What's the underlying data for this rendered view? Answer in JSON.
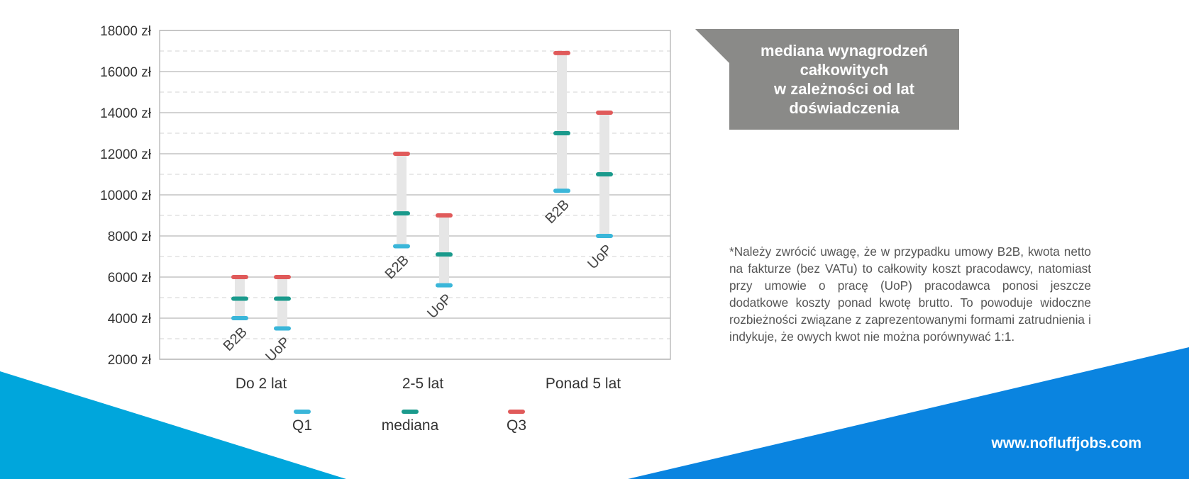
{
  "colors": {
    "q1": "#3ab6d9",
    "median": "#1a9a8c",
    "q3": "#e05a5a",
    "range_bar": "#e6e6e6",
    "title_bg": "#8a8a88",
    "band_left": "#00a6dc",
    "band_right": "#0a84e0"
  },
  "title": "mediana wynagrodzeń\ncałkowitych\nw zależności od lat\ndoświadczenia",
  "footnote": "*Należy zwrócić uwagę, że w przypadku umowy B2B, kwota netto na fakturze (bez VATu) to całkowity koszt pracodawcy, natomiast przy umowie o pracę (UoP) pracodawca ponosi jeszcze dodatkowe koszty ponad kwotę brutto. To powo­duje widoczne rozbieżności związane z zaprezentowanymi formami zatrudnienia i indykuje, że owych kwot nie można porównywać 1:1.",
  "website": "www.nofluffjobs.com",
  "chart_data": {
    "type": "range",
    "y_axis": {
      "min": 2000,
      "max": 18000,
      "ticks": [
        2000,
        4000,
        6000,
        8000,
        10000,
        12000,
        14000,
        16000,
        18000
      ],
      "tick_labels": [
        "2000 zł",
        "4000 zł",
        "6000 zł",
        "8000 zł",
        "10000 zł",
        "12000 zł",
        "14000 zł",
        "16000 zł",
        "18000 zł"
      ],
      "minor_step": 1000
    },
    "categories": [
      "Do 2 lat",
      "2-5 lat",
      "Ponad 5 lat"
    ],
    "groups": [
      "B2B",
      "UoP"
    ],
    "legend": {
      "placement": "bottom",
      "items": [
        {
          "key": "q1",
          "label": "Q1"
        },
        {
          "key": "median",
          "label": "mediana"
        },
        {
          "key": "q3",
          "label": "Q3"
        }
      ]
    },
    "series": [
      {
        "category": "Do 2 lat",
        "group": "B2B",
        "q1": 4000,
        "median": 4950,
        "q3": 6000
      },
      {
        "category": "Do 2 lat",
        "group": "UoP",
        "q1": 3500,
        "median": 4950,
        "q3": 6000
      },
      {
        "category": "2-5 lat",
        "group": "B2B",
        "q1": 7500,
        "median": 9100,
        "q3": 12000
      },
      {
        "category": "2-5 lat",
        "group": "UoP",
        "q1": 5600,
        "median": 7100,
        "q3": 9000
      },
      {
        "category": "Ponad 5 lat",
        "group": "B2B",
        "q1": 10200,
        "median": 13000,
        "q3": 16900
      },
      {
        "category": "Ponad 5 lat",
        "group": "UoP",
        "q1": 8000,
        "median": 11000,
        "q3": 14000
      }
    ]
  }
}
